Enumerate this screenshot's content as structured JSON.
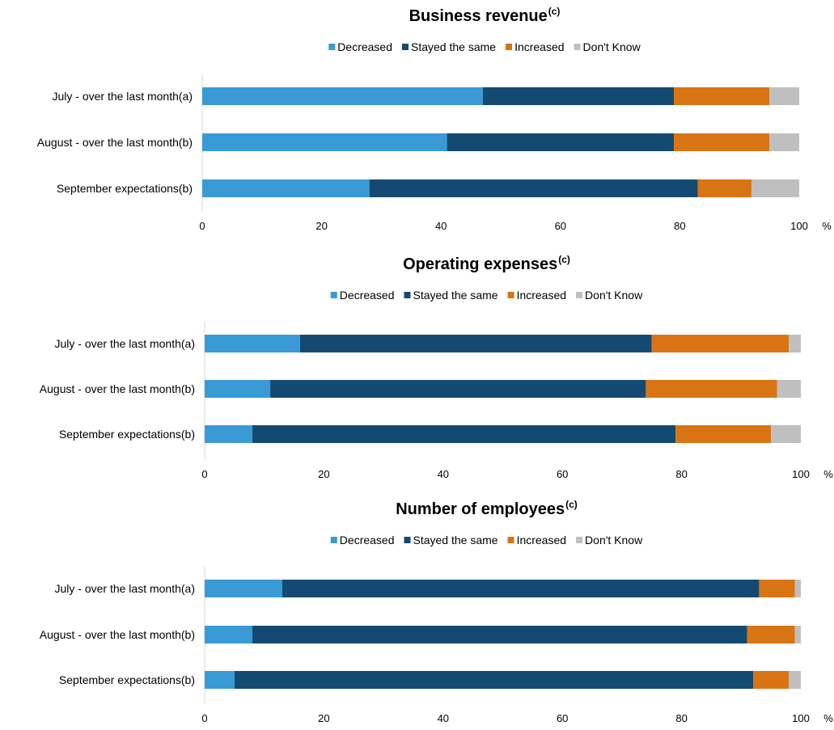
{
  "legend_colors": {
    "Decreased": "#3a9ad6",
    "Stayed the same": "#144a72",
    "Increased": "#d87414",
    "Don't Know": "#bfbfbf"
  },
  "chart_data": [
    {
      "type": "bar",
      "orientation": "horizontal",
      "stacked": true,
      "title": "Business revenue",
      "title_superscript": "(c)",
      "categories": [
        "July - over the last month(a)",
        "August - over the last month(b)",
        "September expectations(b)"
      ],
      "series": [
        {
          "name": "Decreased",
          "values": [
            47,
            41,
            28
          ]
        },
        {
          "name": "Stayed the same",
          "values": [
            32,
            38,
            55
          ]
        },
        {
          "name": "Increased",
          "values": [
            16,
            16,
            9
          ]
        },
        {
          "name": "Don't Know",
          "values": [
            5,
            5,
            8
          ]
        }
      ],
      "xlim": [
        0,
        100
      ],
      "xticks": [
        0,
        20,
        40,
        60,
        80,
        100
      ],
      "unit": "%",
      "legend_position": "top",
      "grid": false
    },
    {
      "type": "bar",
      "orientation": "horizontal",
      "stacked": true,
      "title": "Operating expenses",
      "title_superscript": "(c)",
      "categories": [
        "July - over the last month(a)",
        "August - over the last month(b)",
        "September expectations(b)"
      ],
      "series": [
        {
          "name": "Decreased",
          "values": [
            16,
            11,
            8
          ]
        },
        {
          "name": "Stayed the same",
          "values": [
            59,
            63,
            71
          ]
        },
        {
          "name": "Increased",
          "values": [
            23,
            22,
            16
          ]
        },
        {
          "name": "Don't Know",
          "values": [
            2,
            4,
            5
          ]
        }
      ],
      "xlim": [
        0,
        100
      ],
      "xticks": [
        0,
        20,
        40,
        60,
        80,
        100
      ],
      "unit": "%",
      "legend_position": "top",
      "grid": false
    },
    {
      "type": "bar",
      "orientation": "horizontal",
      "stacked": true,
      "title": "Number of employees",
      "title_superscript": "(c)",
      "categories": [
        "July - over the last month(a)",
        "August - over the last month(b)",
        "September expectations(b)"
      ],
      "series": [
        {
          "name": "Decreased",
          "values": [
            13,
            8,
            5
          ]
        },
        {
          "name": "Stayed the same",
          "values": [
            80,
            83,
            87
          ]
        },
        {
          "name": "Increased",
          "values": [
            6,
            8,
            6
          ]
        },
        {
          "name": "Don't Know",
          "values": [
            1,
            1,
            2
          ]
        }
      ],
      "xlim": [
        0,
        100
      ],
      "xticks": [
        0,
        20,
        40,
        60,
        80,
        100
      ],
      "unit": "%",
      "legend_position": "top",
      "grid": false
    }
  ]
}
